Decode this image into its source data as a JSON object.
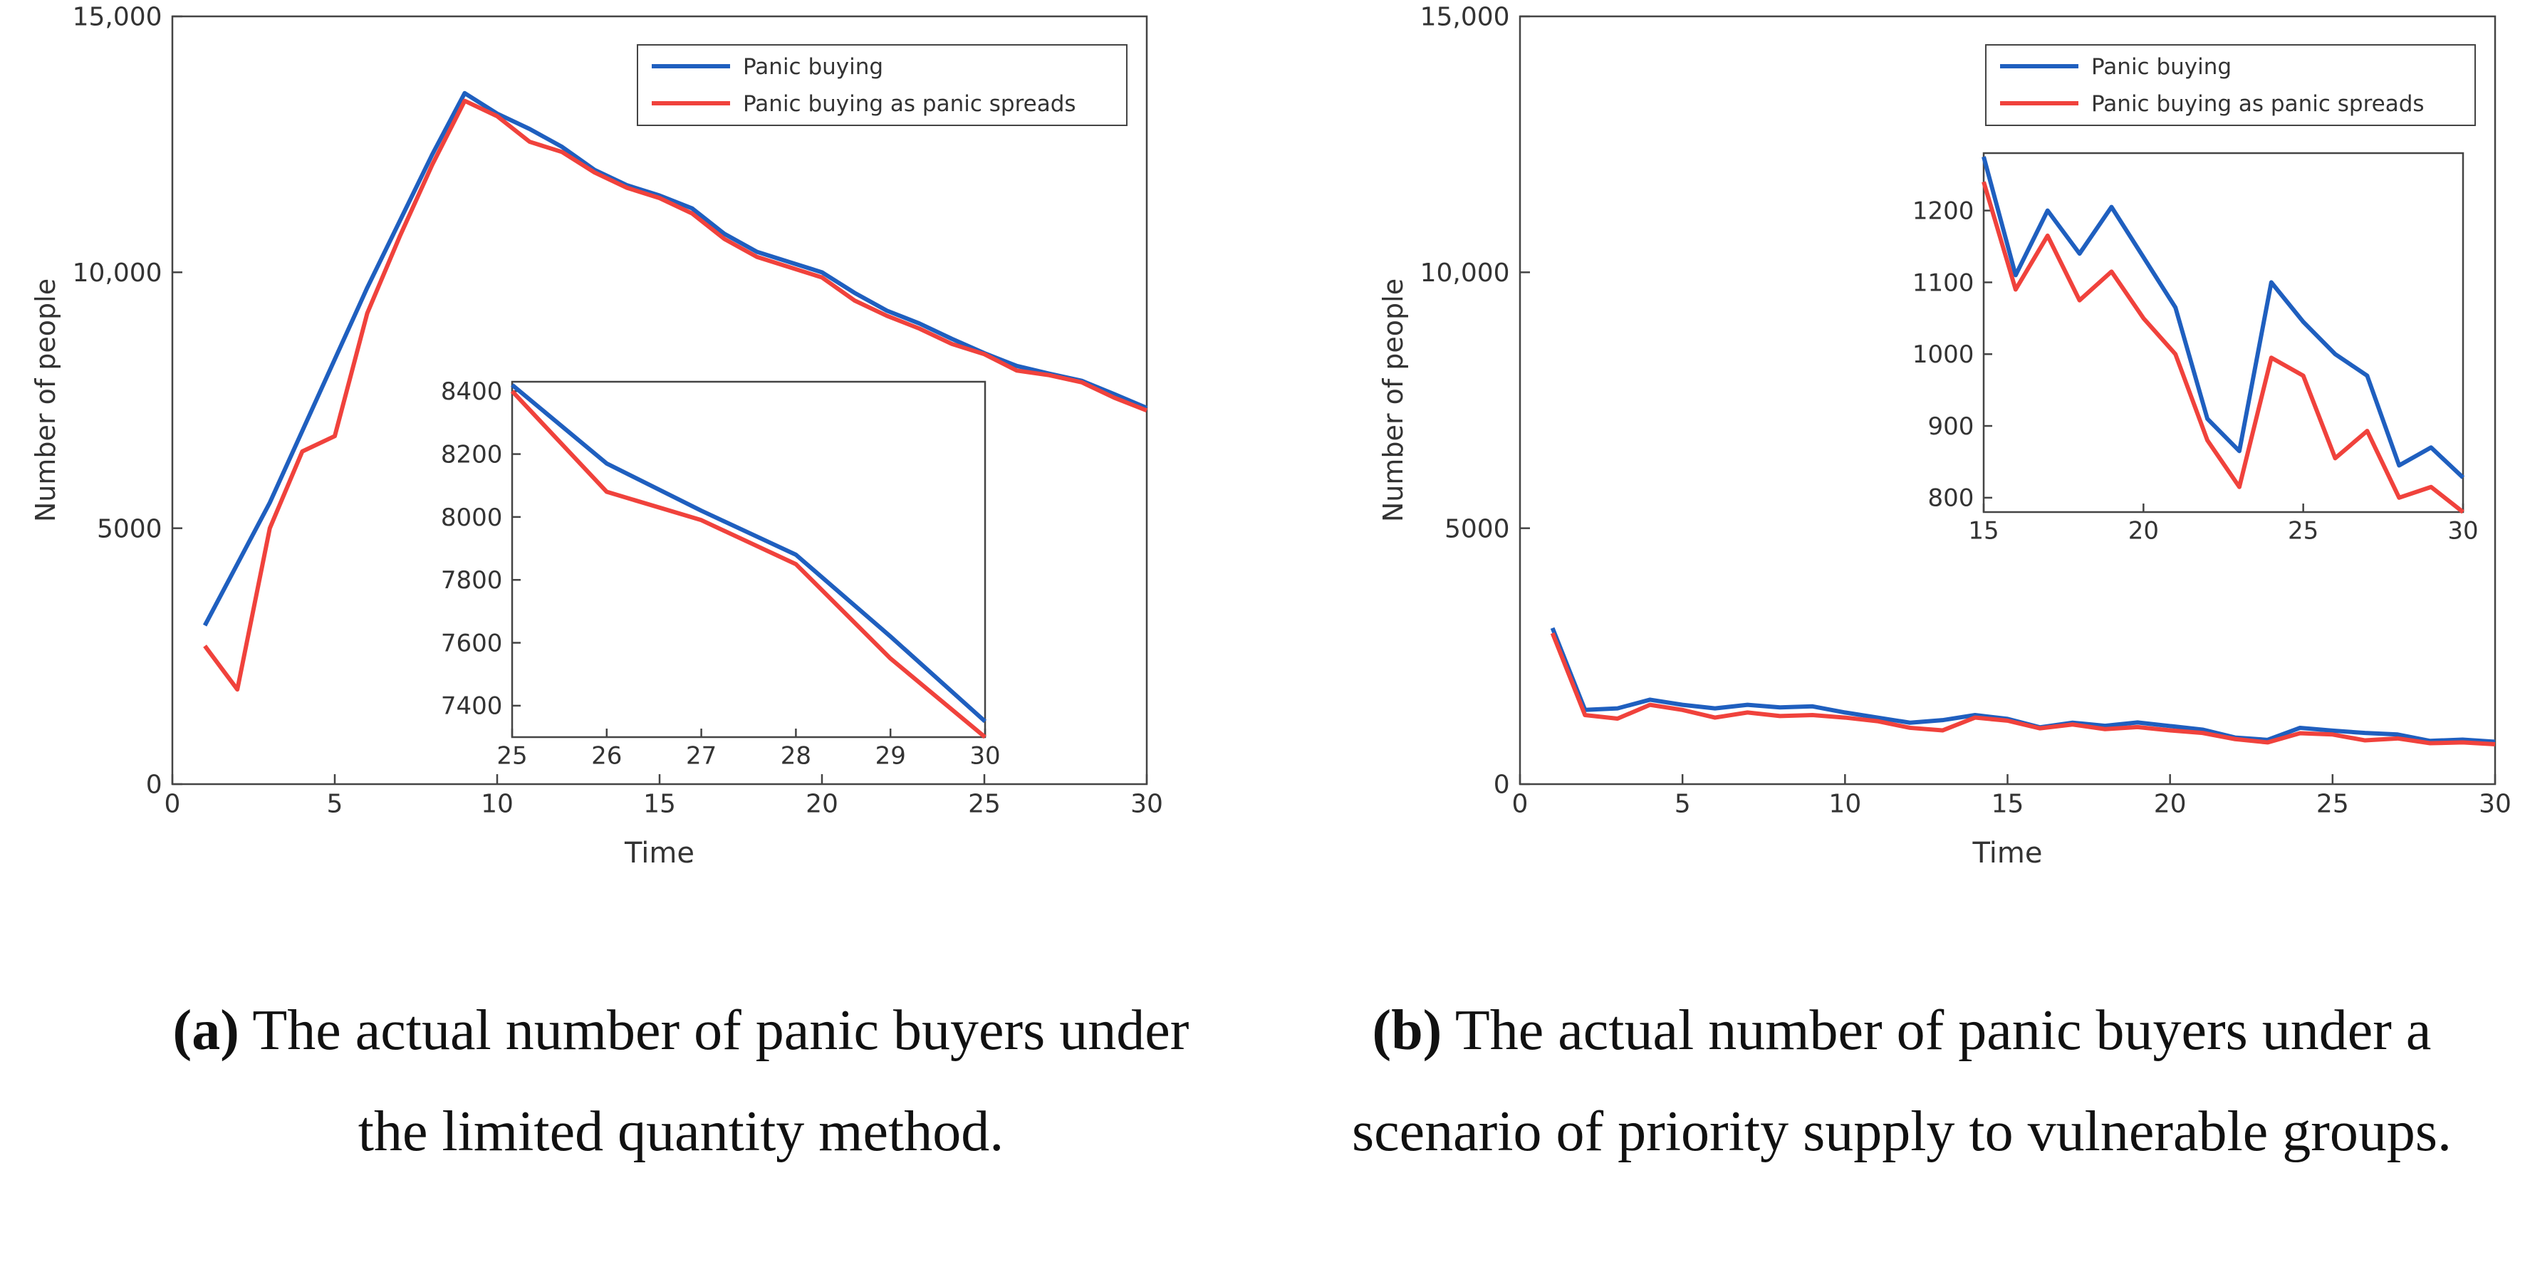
{
  "chart_data": [
    {
      "type": "line",
      "caption_label": "(a)",
      "caption": "The actual number of panic buyers under the limited quantity method.",
      "x_label": "Time",
      "y_label": "Number of people",
      "xlim": [
        0,
        30
      ],
      "ylim": [
        0,
        15000
      ],
      "xticks": [
        0,
        5,
        10,
        15,
        20,
        25,
        30
      ],
      "yticks": [
        0,
        5000,
        {
          "value": 10000,
          "label": "10,000"
        },
        {
          "value": 15000,
          "label": "15,000"
        }
      ],
      "legend": "upper right",
      "x": [
        1,
        2,
        3,
        4,
        5,
        6,
        7,
        8,
        9,
        10,
        11,
        12,
        13,
        14,
        15,
        16,
        17,
        18,
        19,
        20,
        21,
        22,
        23,
        24,
        25,
        26,
        27,
        28,
        29,
        30
      ],
      "series": [
        {
          "name": "Panic buying",
          "color": "#1f5fbf",
          "values": [
            3100,
            4300,
            5500,
            6900,
            8300,
            9700,
            11000,
            12300,
            13500,
            13100,
            12800,
            12450,
            12000,
            11700,
            11500,
            11250,
            10750,
            10400,
            10200,
            10000,
            9600,
            9250,
            9000,
            8700,
            8420,
            8170,
            8020,
            7880,
            7620,
            7350
          ]
        },
        {
          "name": "Panic buying as panic spreads",
          "color": "#f0423c",
          "values": [
            2700,
            1850,
            5000,
            6500,
            6800,
            9200,
            10700,
            12100,
            13350,
            13050,
            12550,
            12350,
            11950,
            11650,
            11450,
            11150,
            10650,
            10300,
            10100,
            9900,
            9450,
            9150,
            8900,
            8600,
            8400,
            8080,
            7990,
            7850,
            7550,
            7300
          ]
        }
      ],
      "inset": {
        "type": "line",
        "xlim": [
          25,
          30
        ],
        "ylim": [
          7300,
          8430
        ],
        "xticks": [
          25,
          26,
          27,
          28,
          29,
          30
        ],
        "yticks": [
          7400,
          7600,
          7800,
          8000,
          8200,
          8400
        ],
        "x": [
          25,
          26,
          27,
          28,
          29,
          30
        ],
        "series": [
          {
            "color": "#1f5fbf",
            "values": [
              8420,
              8170,
              8020,
              7880,
              7620,
              7350
            ]
          },
          {
            "color": "#f0423c",
            "values": [
              8400,
              8080,
              7990,
              7850,
              7550,
              7300
            ]
          }
        ]
      }
    },
    {
      "type": "line",
      "caption_label": "(b)",
      "caption": "The actual number of panic buyers under a scenario of priority supply to vulnerable groups.",
      "x_label": "Time",
      "y_label": "Number of people",
      "xlim": [
        0,
        30
      ],
      "ylim": [
        0,
        15000
      ],
      "xticks": [
        0,
        5,
        10,
        15,
        20,
        25,
        30
      ],
      "yticks": [
        0,
        5000,
        {
          "value": 10000,
          "label": "10,000"
        },
        {
          "value": 15000,
          "label": "15,000"
        }
      ],
      "legend": "upper right",
      "x": [
        1,
        2,
        3,
        4,
        5,
        6,
        7,
        8,
        9,
        10,
        11,
        12,
        13,
        14,
        15,
        16,
        17,
        18,
        19,
        20,
        21,
        22,
        23,
        24,
        25,
        26,
        27,
        28,
        29,
        30
      ],
      "series": [
        {
          "name": "Panic buying",
          "color": "#1f5fbf",
          "values": [
            3050,
            1450,
            1480,
            1650,
            1550,
            1480,
            1550,
            1500,
            1520,
            1400,
            1300,
            1200,
            1250,
            1350,
            1275,
            1110,
            1200,
            1140,
            1205,
            1135,
            1065,
            910,
            865,
            1100,
            1045,
            1000,
            970,
            845,
            870,
            828
          ]
        },
        {
          "name": "Panic buying as panic spreads",
          "color": "#f0423c",
          "values": [
            2950,
            1350,
            1280,
            1550,
            1450,
            1300,
            1400,
            1330,
            1350,
            1300,
            1230,
            1100,
            1050,
            1300,
            1240,
            1090,
            1165,
            1075,
            1115,
            1050,
            1000,
            880,
            815,
            995,
            970,
            855,
            893,
            800,
            815,
            780
          ]
        }
      ],
      "inset": {
        "type": "line",
        "xlim": [
          15,
          30
        ],
        "ylim": [
          780,
          1280
        ],
        "xticks": [
          15,
          20,
          25,
          30
        ],
        "yticks": [
          800,
          900,
          1000,
          1100,
          1200
        ],
        "x": [
          15,
          16,
          17,
          18,
          19,
          20,
          21,
          22,
          23,
          24,
          25,
          26,
          27,
          28,
          29,
          30
        ],
        "series": [
          {
            "color": "#1f5fbf",
            "values": [
              1275,
              1110,
              1200,
              1140,
              1205,
              1135,
              1065,
              910,
              865,
              1100,
              1045,
              1000,
              970,
              845,
              870,
              828
            ]
          },
          {
            "color": "#f0423c",
            "values": [
              1240,
              1090,
              1165,
              1075,
              1115,
              1050,
              1000,
              880,
              815,
              995,
              970,
              855,
              893,
              800,
              815,
              780
            ]
          }
        ]
      }
    }
  ]
}
